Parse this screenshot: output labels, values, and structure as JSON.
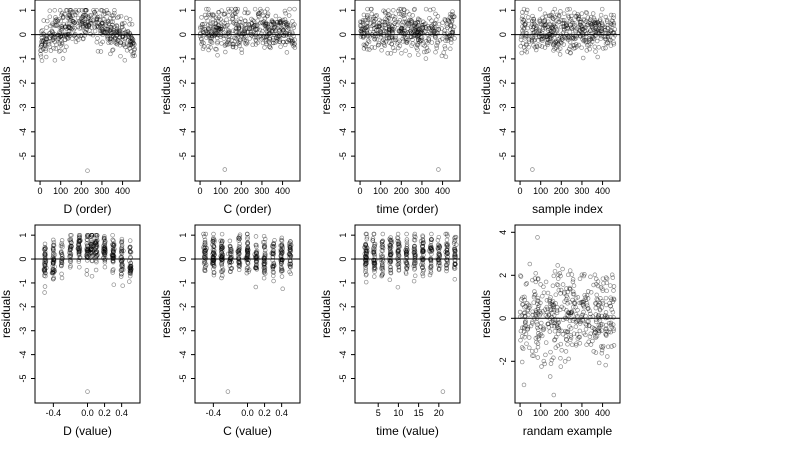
{
  "chart_data": [
    {
      "type": "scatter",
      "xlabel": "D (order)",
      "ylabel": "residuals",
      "xlim": [
        -10,
        470
      ],
      "ylim": [
        -5.9,
        1.3
      ],
      "xticks": [
        0,
        100,
        200,
        300,
        400
      ],
      "yticks": [
        1,
        0,
        -1,
        -2,
        -3,
        -4,
        -5
      ],
      "zero_line": 0,
      "n_points": 460,
      "outlier": {
        "x": 230,
        "y": -5.6
      },
      "pattern": "arch"
    },
    {
      "type": "scatter",
      "xlabel": "C (order)",
      "ylabel": "residuals",
      "xlim": [
        -10,
        470
      ],
      "ylim": [
        -5.9,
        1.3
      ],
      "xticks": [
        0,
        100,
        200,
        300,
        400
      ],
      "yticks": [
        1,
        0,
        -1,
        -2,
        -3,
        -4,
        -5
      ],
      "zero_line": 0,
      "n_points": 460,
      "outlier": {
        "x": 120,
        "y": -5.55
      },
      "pattern": "flat"
    },
    {
      "type": "scatter",
      "xlabel": "time (order)",
      "ylabel": "residuals",
      "xlim": [
        -10,
        470
      ],
      "ylim": [
        -5.9,
        1.3
      ],
      "xticks": [
        0,
        100,
        200,
        300,
        400
      ],
      "yticks": [
        1,
        0,
        -1,
        -2,
        -3,
        -4,
        -5
      ],
      "zero_line": 0,
      "n_points": 460,
      "outlier": {
        "x": 380,
        "y": -5.55
      },
      "pattern": "flat"
    },
    {
      "type": "scatter",
      "xlabel": "sample index",
      "ylabel": "residuals",
      "xlim": [
        -10,
        470
      ],
      "ylim": [
        -5.9,
        1.3
      ],
      "xticks": [
        0,
        100,
        200,
        300,
        400
      ],
      "yticks": [
        1,
        0,
        -1,
        -2,
        -3,
        -4,
        -5
      ],
      "zero_line": 0,
      "n_points": 460,
      "outlier": {
        "x": 60,
        "y": -5.55
      },
      "pattern": "flat"
    },
    {
      "type": "scatter",
      "xlabel": "D (value)",
      "ylabel": "residuals",
      "xlim": [
        -0.58,
        0.58
      ],
      "ylim": [
        -5.9,
        1.3
      ],
      "xticks": [
        -0.4,
        0,
        0.2,
        0.4
      ],
      "xtick_labels": [
        "-0.4",
        "0.0",
        "0.2",
        "0.4"
      ],
      "yticks": [
        1,
        0,
        -1,
        -2,
        -3,
        -4,
        -5
      ],
      "zero_line": 0,
      "n_points": 460,
      "outlier": {
        "x": 0.0,
        "y": -5.55
      },
      "pattern": "arch-clustered",
      "clusters": [
        -0.5,
        -0.4,
        -0.3,
        -0.2,
        -0.1,
        0,
        0.05,
        0.1,
        0.2,
        0.3,
        0.4,
        0.5
      ]
    },
    {
      "type": "scatter",
      "xlabel": "C (value)",
      "ylabel": "residuals",
      "xlim": [
        -0.58,
        0.58
      ],
      "ylim": [
        -5.9,
        1.3
      ],
      "xticks": [
        -0.4,
        0,
        0.2,
        0.4
      ],
      "xtick_labels": [
        "-0.4",
        "0.0",
        "0.2",
        "0.4"
      ],
      "yticks": [
        1,
        0,
        -1,
        -2,
        -3,
        -4,
        -5
      ],
      "zero_line": 0,
      "n_points": 460,
      "outlier": {
        "x": -0.23,
        "y": -5.55
      },
      "pattern": "flat-clustered",
      "clusters": [
        -0.5,
        -0.4,
        -0.3,
        -0.2,
        -0.1,
        0,
        0.1,
        0.2,
        0.3,
        0.4,
        0.5
      ]
    },
    {
      "type": "scatter",
      "xlabel": "time (value)",
      "ylabel": "residuals",
      "xlim": [
        0,
        24.5
      ],
      "ylim": [
        -5.9,
        1.3
      ],
      "xticks": [
        5,
        10,
        15,
        20
      ],
      "yticks": [
        1,
        0,
        -1,
        -2,
        -3,
        -4,
        -5
      ],
      "zero_line": 0,
      "n_points": 460,
      "outlier": {
        "x": 21,
        "y": -5.55
      },
      "pattern": "flat-clustered",
      "clusters": [
        2,
        4,
        6,
        8,
        10,
        12,
        14,
        16,
        18,
        20,
        22,
        24
      ]
    },
    {
      "type": "scatter",
      "xlabel": "randam example",
      "ylabel": "residuals",
      "xlim": [
        -10,
        470
      ],
      "ylim": [
        -3.8,
        4.2
      ],
      "xticks": [
        0,
        100,
        200,
        300,
        400
      ],
      "yticks": [
        4,
        2,
        0,
        -2
      ],
      "zero_line": 0,
      "n_points": 460,
      "pattern": "normal"
    }
  ]
}
